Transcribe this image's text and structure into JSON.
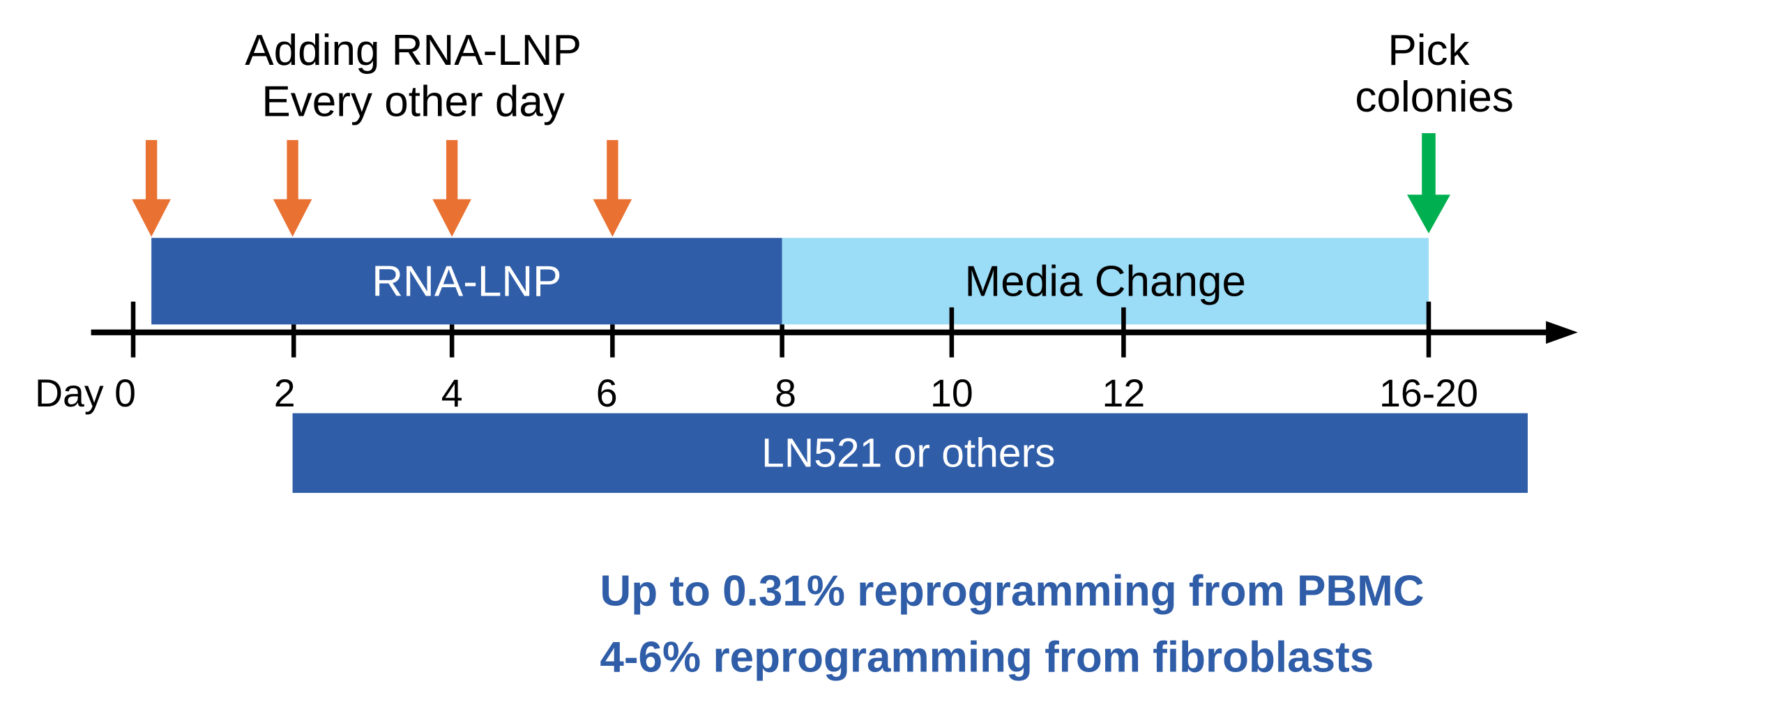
{
  "annotations": {
    "adding_line1": "Adding RNA-LNP",
    "adding_line2": "Every other day",
    "pick_line1": "Pick",
    "pick_line2": "colonies"
  },
  "bars": {
    "rna_lnp": "RNA-LNP",
    "media_change": "Media Change",
    "ln521": "LN521 or others"
  },
  "ticks": [
    "Day 0",
    "2",
    "4",
    "6",
    "8",
    "10",
    "12",
    "16-20"
  ],
  "results": {
    "line1": "Up to 0.31% reprogramming from PBMC",
    "line2": "4-6% reprogramming from fibroblasts"
  },
  "colors": {
    "dark_blue": "#2F5DA8",
    "light_blue": "#9BDCF6",
    "orange": "#E97132",
    "green": "#00B050",
    "result_text": "#2F5DA8"
  }
}
